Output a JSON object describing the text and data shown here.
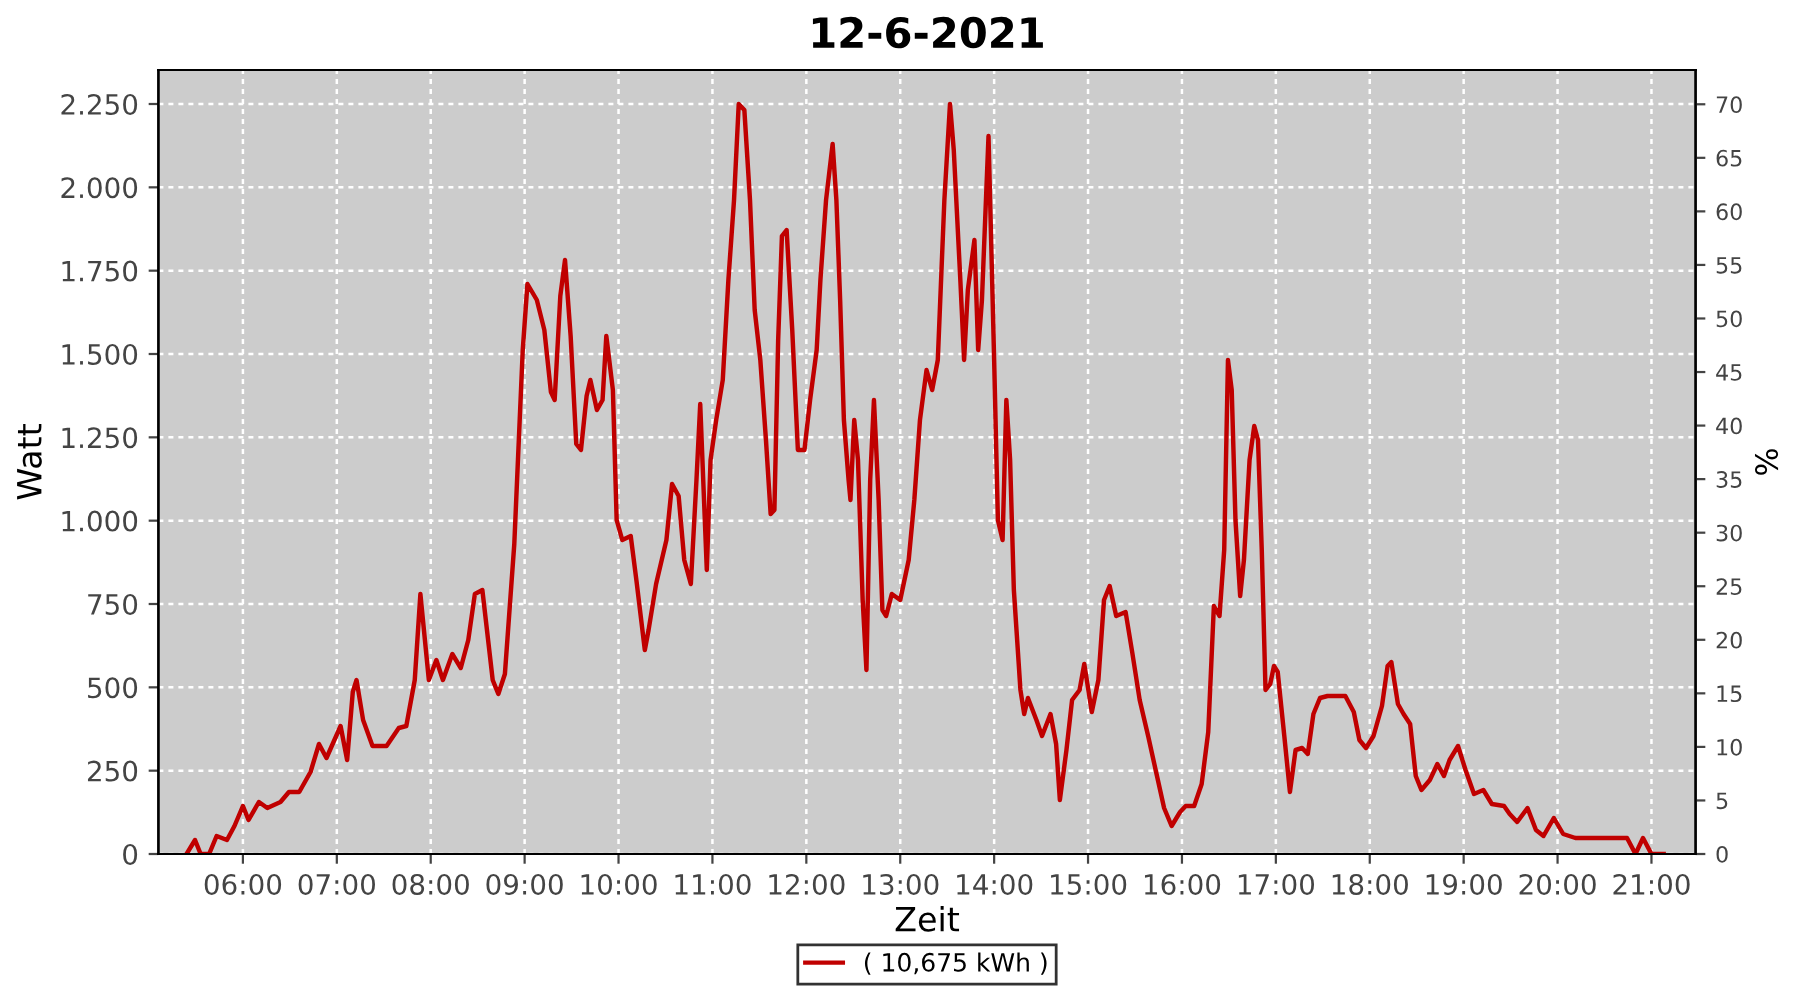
{
  "chart_data": {
    "type": "line",
    "title": "12-6-2021",
    "xlabel": "Zeit",
    "ylabel": "Watt",
    "y2label": "%",
    "series": [
      {
        "name": "( 10,675 kWh )",
        "color": "#c00000",
        "x": [
          5.4,
          5.49,
          5.55,
          5.64,
          5.72,
          5.83,
          5.91,
          6.0,
          6.06,
          6.17,
          6.26,
          6.4,
          6.49,
          6.6,
          6.72,
          6.81,
          6.89,
          7.04,
          7.11,
          7.17,
          7.21,
          7.28,
          7.38,
          7.53,
          7.66,
          7.74,
          7.83,
          7.89,
          7.98,
          8.06,
          8.13,
          8.23,
          8.32,
          8.4,
          8.47,
          8.55,
          8.66,
          8.72,
          8.79,
          8.89,
          8.98,
          9.03,
          9.13,
          9.21,
          9.28,
          9.32,
          9.38,
          9.43,
          9.49,
          9.55,
          9.6,
          9.66,
          9.7,
          9.77,
          9.83,
          9.87,
          9.94,
          9.98,
          10.04,
          10.13,
          10.19,
          10.28,
          10.32,
          10.4,
          10.51,
          10.57,
          10.64,
          10.7,
          10.77,
          10.83,
          10.87,
          10.94,
          10.98,
          11.04,
          11.11,
          11.17,
          11.23,
          11.28,
          11.34,
          11.4,
          11.45,
          11.51,
          11.57,
          11.62,
          11.66,
          11.7,
          11.74,
          11.79,
          11.85,
          11.91,
          11.98,
          12.04,
          12.11,
          12.15,
          12.21,
          12.28,
          12.32,
          12.36,
          12.4,
          12.45,
          12.47,
          12.51,
          12.55,
          12.6,
          12.64,
          12.68,
          12.72,
          12.77,
          12.81,
          12.85,
          12.91,
          13.0,
          13.09,
          13.15,
          13.21,
          13.28,
          13.34,
          13.4,
          13.47,
          13.53,
          13.57,
          13.64,
          13.68,
          13.72,
          13.79,
          13.83,
          13.87,
          13.94,
          14.0,
          14.04,
          14.09,
          14.13,
          14.17,
          14.21,
          14.28,
          14.32,
          14.36,
          14.45,
          14.51,
          14.6,
          14.66,
          14.7,
          14.77,
          14.83,
          14.91,
          14.96,
          15.04,
          15.11,
          15.17,
          15.23,
          15.3,
          15.4,
          15.47,
          15.55,
          15.64,
          15.72,
          15.81,
          15.89,
          15.98,
          16.04,
          16.13,
          16.21,
          16.28,
          16.34,
          16.4,
          16.45,
          16.49,
          16.53,
          16.57,
          16.62,
          16.66,
          16.72,
          16.77,
          16.81,
          16.85,
          16.89,
          16.94,
          16.98,
          17.02,
          17.09,
          17.15,
          17.21,
          17.28,
          17.34,
          17.4,
          17.47,
          17.55,
          17.74,
          17.83,
          17.89,
          17.96,
          18.04,
          18.13,
          18.19,
          18.23,
          18.3,
          18.36,
          18.43,
          18.49,
          18.55,
          18.64,
          18.72,
          18.79,
          18.85,
          18.94,
          19.02,
          19.11,
          19.21,
          19.3,
          19.43,
          19.49,
          19.57,
          19.68,
          19.77,
          19.85,
          19.96,
          20.06,
          20.19,
          20.74,
          20.83,
          20.91,
          21.0,
          21.13
        ],
        "values": [
          0,
          42,
          0,
          0,
          54,
          42,
          84,
          144,
          102,
          156,
          138,
          156,
          186,
          186,
          246,
          330,
          288,
          384,
          282,
          486,
          522,
          402,
          324,
          324,
          378,
          384,
          522,
          780,
          522,
          582,
          522,
          600,
          558,
          642,
          780,
          792,
          522,
          480,
          540,
          930,
          1512,
          1710,
          1662,
          1572,
          1386,
          1362,
          1674,
          1782,
          1554,
          1230,
          1212,
          1374,
          1422,
          1332,
          1362,
          1554,
          1392,
          1002,
          942,
          954,
          822,
          612,
          672,
          810,
          942,
          1110,
          1074,
          882,
          810,
          1122,
          1350,
          852,
          1182,
          1302,
          1422,
          1722,
          1962,
          2250,
          2232,
          1962,
          1632,
          1482,
          1242,
          1020,
          1032,
          1542,
          1854,
          1872,
          1572,
          1212,
          1212,
          1362,
          1512,
          1722,
          1962,
          2130,
          1962,
          1662,
          1302,
          1122,
          1062,
          1302,
          1182,
          762,
          552,
          1122,
          1362,
          1062,
          732,
          714,
          780,
          762,
          882,
          1062,
          1302,
          1452,
          1392,
          1482,
          1962,
          2250,
          2112,
          1722,
          1482,
          1692,
          1842,
          1512,
          1662,
          2154,
          1482,
          1002,
          942,
          1362,
          1182,
          792,
          492,
          420,
          468,
          402,
          354,
          420,
          330,
          162,
          312,
          462,
          492,
          570,
          426,
          522,
          762,
          804,
          714,
          726,
          606,
          462,
          354,
          252,
          138,
          84,
          126,
          144,
          144,
          210,
          366,
          744,
          714,
          912,
          1482,
          1392,
          1002,
          774,
          882,
          1182,
          1284,
          1242,
          912,
          492,
          510,
          564,
          546,
          354,
          186,
          312,
          318,
          300,
          420,
          468,
          474,
          474,
          426,
          342,
          318,
          354,
          444,
          564,
          576,
          450,
          420,
          390,
          234,
          192,
          222,
          270,
          234,
          282,
          324,
          252,
          180,
          192,
          150,
          144,
          120,
          96,
          138,
          72,
          54,
          108,
          60,
          48,
          48,
          0,
          48,
          0,
          0
        ]
      }
    ],
    "xlim": [
      5.1,
      21.47
    ],
    "xticks": [
      {
        "value": 6,
        "label": "06:00"
      },
      {
        "value": 7,
        "label": "07:00"
      },
      {
        "value": 8,
        "label": "08:00"
      },
      {
        "value": 9,
        "label": "09:00"
      },
      {
        "value": 10,
        "label": "10:00"
      },
      {
        "value": 11,
        "label": "11:00"
      },
      {
        "value": 12,
        "label": "12:00"
      },
      {
        "value": 13,
        "label": "13:00"
      },
      {
        "value": 14,
        "label": "14:00"
      },
      {
        "value": 15,
        "label": "15:00"
      },
      {
        "value": 16,
        "label": "16:00"
      },
      {
        "value": 17,
        "label": "17:00"
      },
      {
        "value": 18,
        "label": "18:00"
      },
      {
        "value": 19,
        "label": "19:00"
      },
      {
        "value": 20,
        "label": "20:00"
      },
      {
        "value": 21,
        "label": "21:00"
      }
    ],
    "ylim": [
      0,
      2352
    ],
    "yticks": [
      0,
      250,
      500,
      750,
      {
        "value": 1000,
        "label": "1.000"
      },
      {
        "value": 1250,
        "label": "1.250"
      },
      {
        "value": 1500,
        "label": "1.500"
      },
      {
        "value": 1750,
        "label": "1.750"
      },
      {
        "value": 2000,
        "label": "2.000"
      },
      {
        "value": 2250,
        "label": "2.250"
      }
    ],
    "y2lim": [
      0,
      73.2
    ],
    "y2ticks": [
      0,
      5,
      10,
      15,
      20,
      25,
      30,
      35,
      40,
      45,
      50,
      55,
      60,
      65,
      70
    ],
    "grid": true,
    "legend": "bottom",
    "marker": "none",
    "line_style": "solid"
  }
}
